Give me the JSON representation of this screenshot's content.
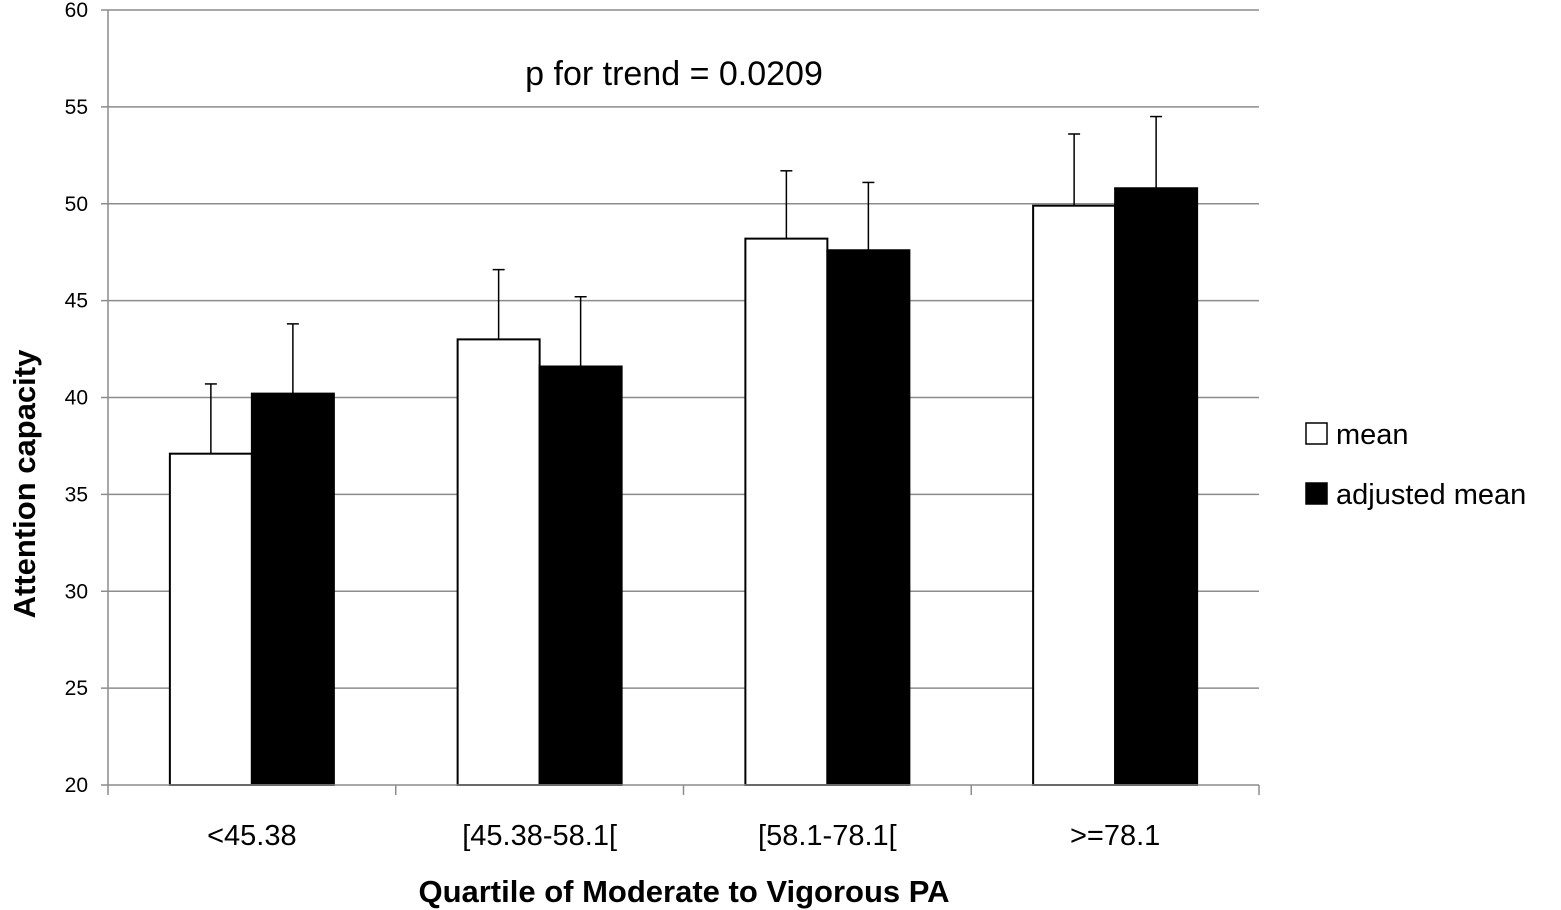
{
  "chart_data": {
    "type": "bar",
    "categories": [
      "<45.38",
      "[45.38-58.1[",
      "[58.1-78.1[",
      ">=78.1"
    ],
    "series": [
      {
        "name": "mean",
        "color": "#ffffff",
        "values": [
          37.1,
          43.0,
          48.2,
          49.9
        ],
        "error": [
          3.6,
          3.6,
          3.5,
          3.7
        ]
      },
      {
        "name": "adjusted mean",
        "color": "#000000",
        "values": [
          40.2,
          41.6,
          47.6,
          50.8
        ],
        "error": [
          3.6,
          3.6,
          3.5,
          3.7
        ]
      }
    ],
    "ylim": [
      20,
      60
    ],
    "ytick_step": 5,
    "xlabel": "Quartile of Moderate to Vigorous PA",
    "ylabel": "Attention capacity",
    "annotation": "p for trend = 0.0209",
    "grid": true,
    "legend_position": "right"
  }
}
